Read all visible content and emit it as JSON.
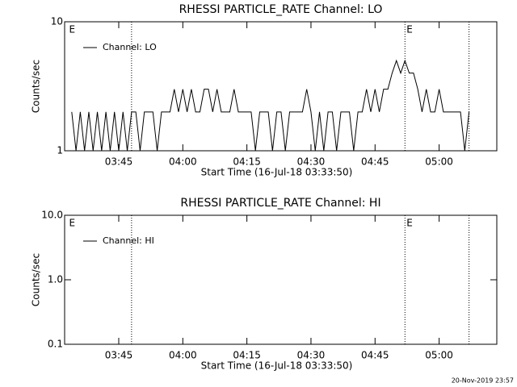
{
  "chart_data": [
    {
      "type": "line",
      "title": "RHESSI PARTICLE_RATE Channel: LO",
      "xlabel": "Start Time (16-Jul-18 03:33:50)",
      "ylabel": "Counts/sec",
      "log_y": true,
      "ylim": [
        1,
        10
      ],
      "yticks": [
        1,
        10
      ],
      "xlim": [
        "03:32:20",
        "05:13:30"
      ],
      "xticks": [
        "03:45",
        "04:00",
        "04:15",
        "04:30",
        "04:45",
        "05:00"
      ],
      "vlines": [
        "03:48",
        "04:52",
        "05:07"
      ],
      "annotations": [
        {
          "text": "E",
          "x": "03:33"
        },
        {
          "text": "E",
          "x": "04:52"
        }
      ],
      "legend": "upper left",
      "x": [
        "03:34",
        "03:35",
        "03:36",
        "03:37",
        "03:38",
        "03:39",
        "03:40",
        "03:41",
        "03:42",
        "03:43",
        "03:44",
        "03:45",
        "03:46",
        "03:47",
        "03:48",
        "03:49",
        "03:50",
        "03:51",
        "03:52",
        "03:53",
        "03:54",
        "03:55",
        "03:56",
        "03:57",
        "03:58",
        "03:59",
        "04:00",
        "04:01",
        "04:02",
        "04:03",
        "04:04",
        "04:05",
        "04:06",
        "04:07",
        "04:08",
        "04:09",
        "04:10",
        "04:11",
        "04:12",
        "04:13",
        "04:14",
        "04:15",
        "04:16",
        "04:17",
        "04:18",
        "04:19",
        "04:20",
        "04:21",
        "04:22",
        "04:23",
        "04:24",
        "04:25",
        "04:26",
        "04:27",
        "04:28",
        "04:29",
        "04:30",
        "04:31",
        "04:32",
        "04:33",
        "04:34",
        "04:35",
        "04:36",
        "04:37",
        "04:38",
        "04:39",
        "04:40",
        "04:41",
        "04:42",
        "04:43",
        "04:44",
        "04:45",
        "04:46",
        "04:47",
        "04:48",
        "04:49",
        "04:50",
        "04:51",
        "04:52",
        "04:53",
        "04:54",
        "04:55",
        "04:56",
        "04:57",
        "04:58",
        "04:59",
        "05:00",
        "05:01",
        "05:02",
        "05:03",
        "05:04",
        "05:05",
        "05:06",
        "05:07"
      ],
      "series": [
        {
          "name": "Channel: LO",
          "color": "#000000",
          "values": [
            2,
            1,
            2,
            1,
            2,
            1,
            2,
            1,
            2,
            1,
            2,
            1,
            2,
            1,
            2,
            2,
            1,
            2,
            2,
            2,
            1,
            2,
            2,
            2,
            3,
            2,
            3,
            2,
            3,
            2,
            2,
            3,
            3,
            2,
            3,
            2,
            2,
            2,
            3,
            2,
            2,
            2,
            2,
            1,
            2,
            2,
            2,
            1,
            2,
            2,
            1,
            2,
            2,
            2,
            2,
            3,
            2,
            1,
            2,
            1,
            2,
            2,
            1,
            2,
            2,
            2,
            1,
            2,
            2,
            3,
            2,
            3,
            2,
            3,
            3,
            4,
            5,
            4,
            5,
            4,
            4,
            3,
            2,
            3,
            2,
            2,
            3,
            2,
            2,
            2,
            2,
            2,
            1,
            2
          ]
        }
      ]
    },
    {
      "type": "line",
      "title": "RHESSI PARTICLE_RATE Channel: HI",
      "xlabel": "Start Time (16-Jul-18 03:33:50)",
      "ylabel": "Counts/sec",
      "log_y": true,
      "ylim": [
        0.1,
        10
      ],
      "yticks": [
        {
          "value": 0.1,
          "label": "0.1"
        },
        {
          "value": 1,
          "label": "1.0"
        },
        {
          "value": 10,
          "label": "10.0"
        }
      ],
      "xlim": [
        "03:32:20",
        "05:13:30"
      ],
      "xticks": [
        "03:45",
        "04:00",
        "04:15",
        "04:30",
        "04:45",
        "05:00"
      ],
      "vlines": [
        "03:48",
        "04:52",
        "05:07"
      ],
      "annotations": [
        {
          "text": "E",
          "x": "03:33"
        },
        {
          "text": "E",
          "x": "04:52"
        }
      ],
      "legend": "upper left",
      "x": [],
      "series": [
        {
          "name": "Channel: HI",
          "color": "#000000",
          "values": []
        }
      ]
    }
  ],
  "footer": "20-Nov-2019 23:57"
}
